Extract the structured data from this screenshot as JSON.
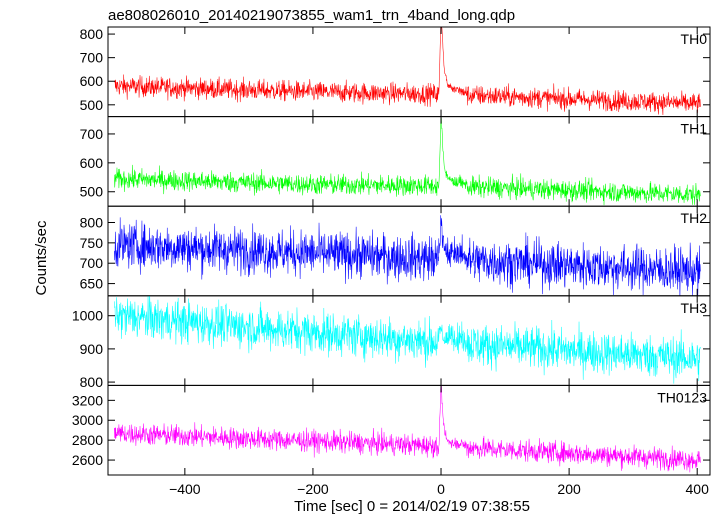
{
  "chart_data": {
    "type": "line",
    "title": "ae808026010_20140219073855_wam1_trn_4band_long.qdp",
    "xlabel": "Time [sec] 0 = 2014/02/19 07:38:55",
    "ylabel": "Counts/sec",
    "xlim": [
      -520,
      420
    ],
    "xticks": [
      -400,
      -200,
      0,
      200,
      400
    ],
    "xtick_labels": [
      "−400",
      "−200",
      "0",
      "200",
      "400"
    ],
    "grid": false,
    "panels": [
      {
        "name": "TH0",
        "color": "#ff0000",
        "ylim": [
          450,
          830
        ],
        "yticks": [
          500,
          600,
          700,
          800
        ],
        "baseline": [
          [
            -510,
            580
          ],
          [
            -200,
            555
          ],
          [
            0,
            545
          ],
          [
            400,
            505
          ]
        ],
        "noise": 22,
        "burst": {
          "t": [
            -3,
            0,
            2,
            4,
            6,
            10,
            20,
            40
          ],
          "y": [
            560,
            900,
            800,
            690,
            630,
            590,
            565,
            545
          ]
        }
      },
      {
        "name": "TH1",
        "color": "#00ff00",
        "ylim": [
          450,
          760
        ],
        "yticks": [
          500,
          600,
          700
        ],
        "baseline": [
          [
            -510,
            545
          ],
          [
            -200,
            525
          ],
          [
            0,
            520
          ],
          [
            400,
            490
          ]
        ],
        "noise": 18,
        "burst": {
          "t": [
            -3,
            0,
            2,
            4,
            6,
            10,
            20,
            40
          ],
          "y": [
            530,
            760,
            690,
            620,
            575,
            550,
            530,
            520
          ]
        }
      },
      {
        "name": "TH2",
        "color": "#0000ff",
        "ylim": [
          620,
          840
        ],
        "yticks": [
          650,
          700,
          750,
          800
        ],
        "baseline": [
          [
            -510,
            745
          ],
          [
            -200,
            725
          ],
          [
            0,
            710
          ],
          [
            400,
            680
          ]
        ],
        "noise": 28,
        "burst": {
          "t": [
            -3,
            0,
            2,
            6,
            15,
            40
          ],
          "y": [
            715,
            810,
            760,
            730,
            715,
            705
          ]
        }
      },
      {
        "name": "TH3",
        "color": "#00ffff",
        "ylim": [
          790,
          1060
        ],
        "yticks": [
          800,
          900,
          1000
        ],
        "baseline": [
          [
            -510,
            1000
          ],
          [
            -200,
            950
          ],
          [
            0,
            920
          ],
          [
            400,
            870
          ]
        ],
        "noise": 32,
        "burst": {
          "t": [
            -3,
            0,
            3,
            10,
            40
          ],
          "y": [
            925,
            960,
            930,
            920,
            915
          ]
        }
      },
      {
        "name": "TH0123",
        "color": "#ff00ff",
        "ylim": [
          2450,
          3350
        ],
        "yticks": [
          2600,
          2800,
          3000,
          3200
        ],
        "baseline": [
          [
            -510,
            2870
          ],
          [
            -200,
            2790
          ],
          [
            0,
            2740
          ],
          [
            400,
            2600
          ]
        ],
        "noise": 55,
        "burst": {
          "t": [
            -3,
            0,
            2,
            4,
            6,
            10,
            20,
            40
          ],
          "y": [
            2760,
            3400,
            3150,
            2950,
            2850,
            2790,
            2760,
            2740
          ]
        }
      }
    ]
  }
}
